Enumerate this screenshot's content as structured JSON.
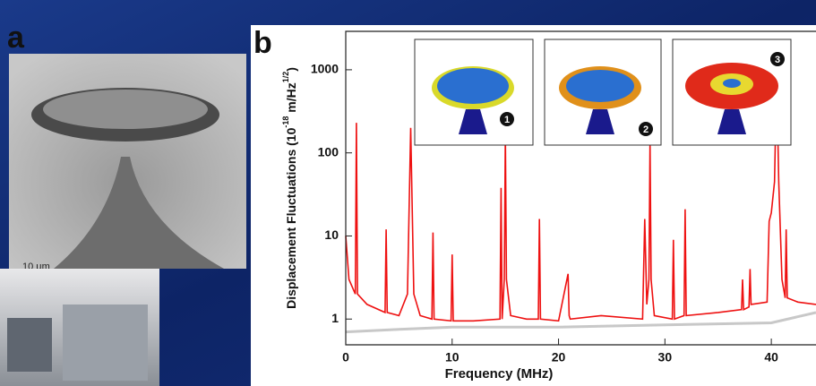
{
  "chart_data": {
    "type": "line",
    "panel_labels": [
      "a",
      "b"
    ],
    "scale_bar": "10 μm",
    "mode_labels": [
      "1",
      "2",
      "3"
    ],
    "x_label": "Frequency (MHz)",
    "y_label_parts": [
      "Displacement Fluctuations (10",
      "-18",
      " m/Hz",
      "1/2",
      ")"
    ],
    "log_y": true,
    "xlim": [
      0,
      44.2
    ],
    "ylim": [
      0.49,
      2900
    ],
    "xticks": [
      0,
      10,
      20,
      30,
      40
    ],
    "yticks": [
      1,
      10,
      100,
      1000
    ],
    "series": [
      {
        "name": "background",
        "color": "#c8c8c8",
        "x": [
          0,
          5,
          10,
          20,
          30,
          40,
          44.2
        ],
        "values": [
          0.7,
          0.75,
          0.8,
          0.8,
          0.85,
          0.9,
          1.2
        ]
      },
      {
        "name": "spectrum",
        "color": "#ee1111",
        "x": [
          0,
          0.3,
          0.9,
          1.0,
          1.1,
          2,
          3.7,
          3.8,
          3.9,
          5,
          5.8,
          6.1,
          6.4,
          7,
          8.1,
          8.2,
          8.3,
          9.9,
          10.0,
          10.1,
          12,
          14.5,
          14.6,
          14.7,
          14.9,
          15.0,
          15.1,
          15.5,
          17,
          18.1,
          18.2,
          18.3,
          20,
          20.9,
          21.0,
          21.1,
          24,
          27.9,
          28.1,
          28.3,
          28.5,
          28.6,
          28.7,
          29.0,
          30.7,
          30.8,
          30.9,
          31.8,
          31.9,
          32.0,
          35,
          37.2,
          37.3,
          37.4,
          37.9,
          38.0,
          38.1,
          39.6,
          39.8,
          40.0,
          40.3,
          40.5,
          40.7,
          41.0,
          41.3,
          41.4,
          41.5,
          42.5,
          44.2
        ],
        "values": [
          10,
          3,
          2,
          230,
          2,
          1.5,
          1.2,
          12,
          1.2,
          1.1,
          2,
          200,
          2,
          1.1,
          1,
          11,
          1,
          0.95,
          6,
          0.95,
          0.95,
          1,
          38,
          1,
          3,
          170,
          3,
          1.1,
          1,
          1,
          16,
          1,
          0.95,
          3.5,
          1.1,
          1,
          1.1,
          1,
          16,
          1.5,
          3,
          140,
          3,
          1.1,
          1,
          9,
          1,
          1.1,
          21,
          1.1,
          1.2,
          1.3,
          3,
          1.3,
          1.4,
          4,
          1.5,
          1.6,
          15,
          19,
          45,
          900,
          45,
          3,
          1.8,
          12,
          1.8,
          1.6,
          1.5
        ]
      }
    ]
  }
}
